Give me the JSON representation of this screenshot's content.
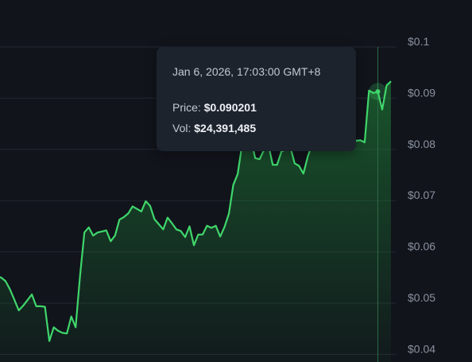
{
  "chart_data": {
    "type": "area",
    "title": "",
    "xlabel": "",
    "ylabel": "",
    "ylim": [
      0.0395,
      0.1045
    ],
    "yticks": [
      {
        "value": 0.1,
        "label": "$0.1"
      },
      {
        "value": 0.09,
        "label": "$0.09"
      },
      {
        "value": 0.08,
        "label": "$0.08"
      },
      {
        "value": 0.07,
        "label": "$0.07"
      },
      {
        "value": 0.06,
        "label": "$0.06"
      },
      {
        "value": 0.05,
        "label": "$0.05"
      },
      {
        "value": 0.04,
        "label": "$0.04"
      }
    ],
    "grid": true,
    "line_color": "#3fd66b",
    "fill_color": "#1f8c3a",
    "series": [
      {
        "values": [
          0.0542,
          0.0539,
          0.0532,
          0.0516,
          0.0496,
          0.0475,
          0.0484,
          0.0495,
          0.0506,
          0.0483,
          0.0483,
          0.0482,
          0.0415,
          0.0442,
          0.0435,
          0.0431,
          0.043,
          0.0463,
          0.0442,
          0.0542,
          0.0627,
          0.0637,
          0.0621,
          0.0627,
          0.0629,
          0.0631,
          0.061,
          0.0621,
          0.0652,
          0.0657,
          0.0664,
          0.0678,
          0.0673,
          0.0668,
          0.0688,
          0.0679,
          0.0653,
          0.0643,
          0.0633,
          0.0656,
          0.0645,
          0.0633,
          0.063,
          0.0618,
          0.0639,
          0.0602,
          0.0623,
          0.0623,
          0.064,
          0.0636,
          0.064,
          0.0619,
          0.0638,
          0.0664,
          0.072,
          0.0741,
          0.0798,
          0.0935,
          0.081,
          0.0772,
          0.077,
          0.0788,
          0.0799,
          0.0759,
          0.0759,
          0.0785,
          0.0788,
          0.0795,
          0.0762,
          0.0757,
          0.0742,
          0.0775,
          0.08,
          0.081,
          0.0817,
          0.0824,
          0.0828,
          0.0825,
          0.0819,
          0.0816,
          0.0813,
          0.0805,
          0.0806,
          0.0807,
          0.0803,
          0.0904,
          0.0899,
          0.0902,
          0.0867,
          0.0914,
          0.0922
        ]
      }
    ],
    "hover_index": 87
  },
  "tooltip": {
    "time": "Jan 6, 2026, 17:03:00 GMT+8",
    "price_label": "Price:",
    "price_value": "$0.090201",
    "vol_label": "Vol:",
    "vol_value": "$24,391,485"
  },
  "colors": {
    "background": "#11141b",
    "grid": "#222833",
    "crosshair": "#2e6b45"
  }
}
